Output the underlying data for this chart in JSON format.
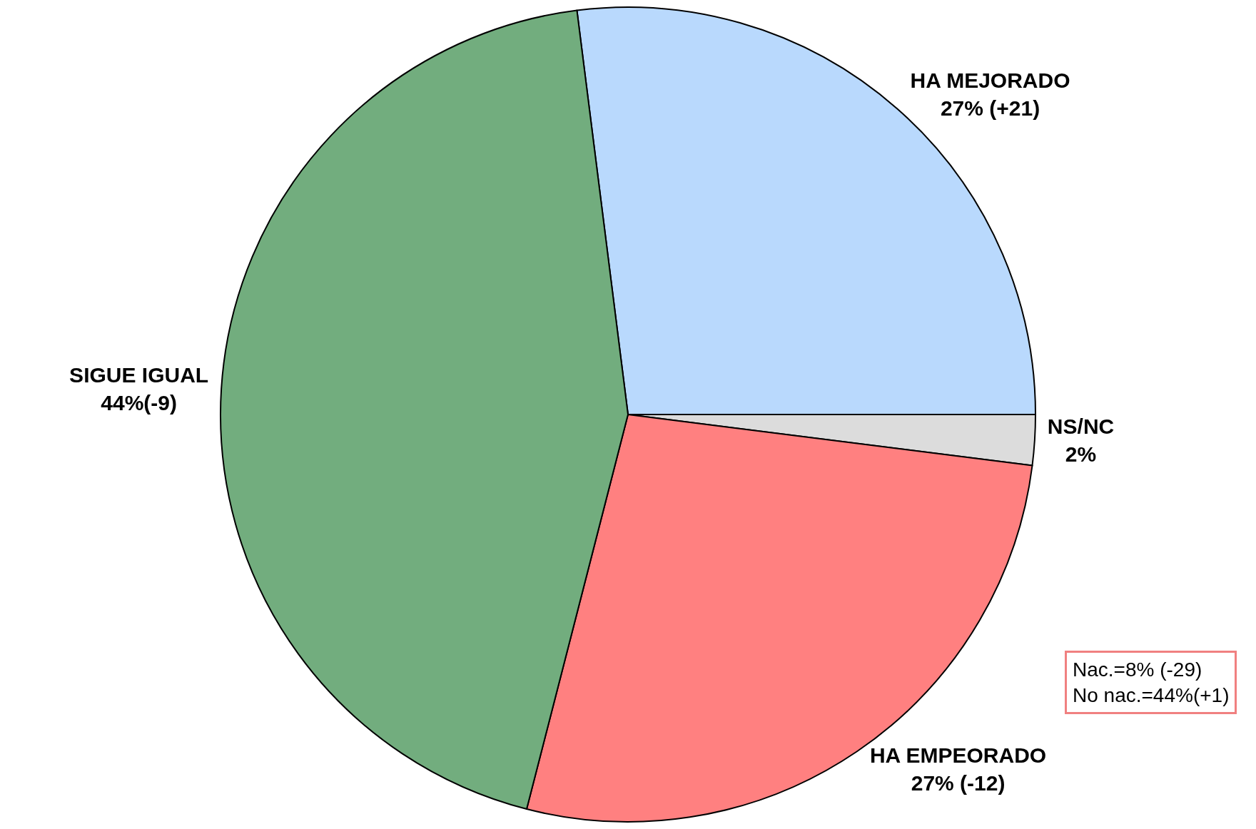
{
  "chart_data": {
    "type": "pie",
    "categories": [
      "HA MEJORADO",
      "NS/NC",
      "HA EMPEORADO",
      "SIGUE IGUAL"
    ],
    "values": [
      27,
      2,
      27,
      44
    ],
    "colors": [
      "#b9d9fd",
      "#dcdcdc",
      "#ff8080",
      "#72ad7e"
    ],
    "value_labels": [
      "27% (+21)",
      "2%",
      "27% (-12)",
      "44%(-9)"
    ],
    "legend": false,
    "annotations": [
      "Nac.=8% (-29)\nNo nac.=44%(+1)"
    ]
  }
}
